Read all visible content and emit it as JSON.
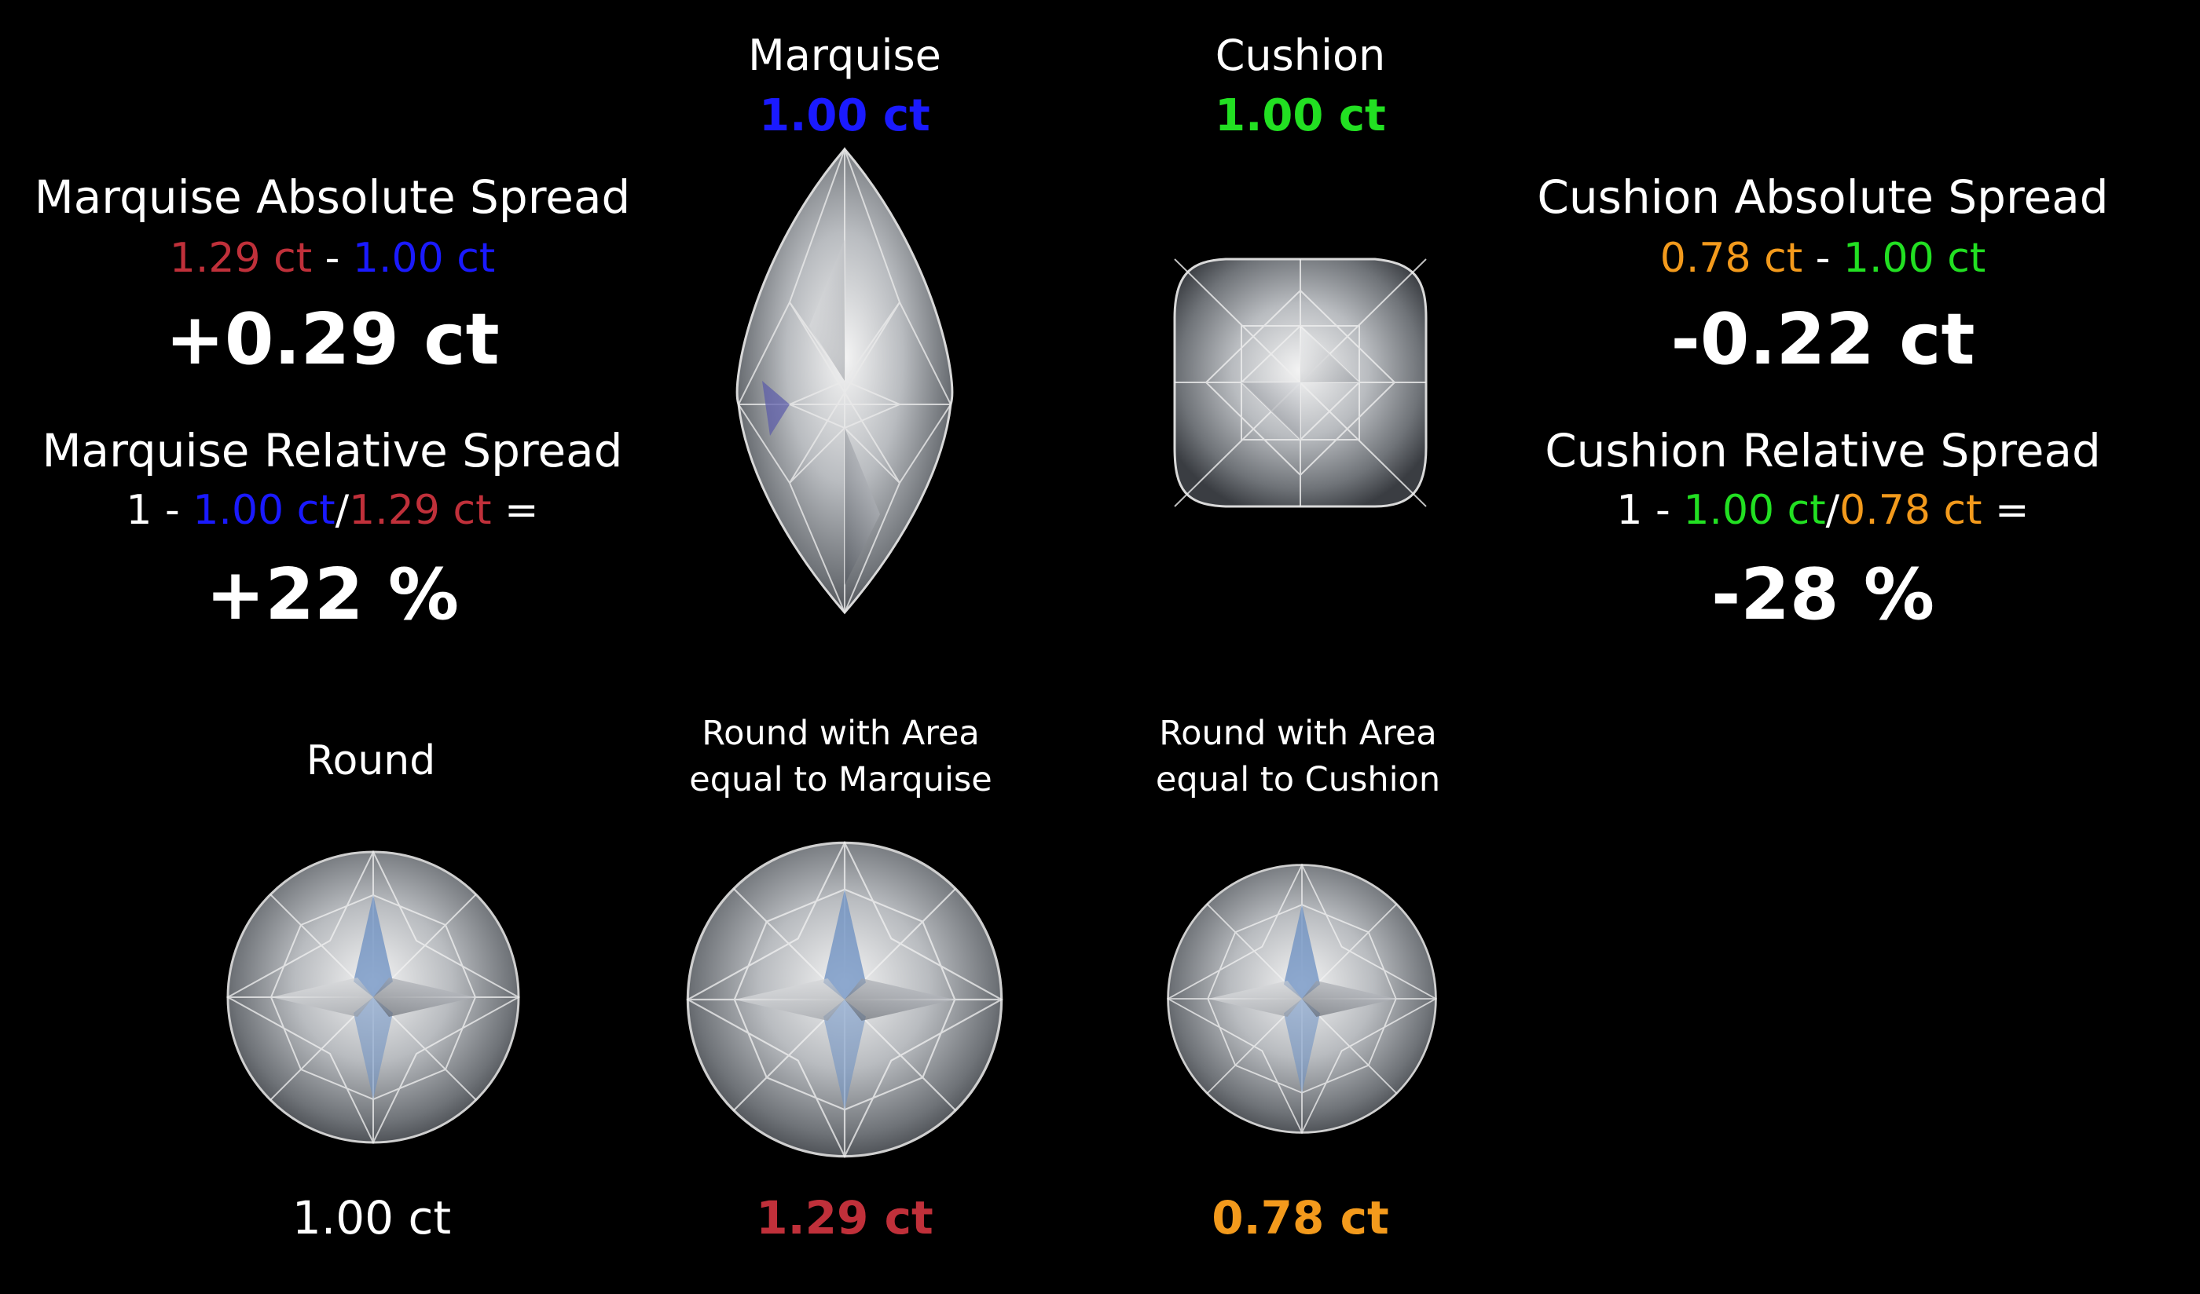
{
  "colors": {
    "red": "#c0303a",
    "blue": "#1a1aff",
    "green": "#22e022",
    "orange": "#f39a1c",
    "white": "#ffffff",
    "background": "#000000"
  },
  "marquise_header": {
    "name": "Marquise",
    "carat": "1.00 ct"
  },
  "cushion_header": {
    "name": "Cushion",
    "carat": "1.00 ct"
  },
  "marquise_spread": {
    "absolute_title": "Marquise Absolute Spread",
    "absolute_a": "1.29 ct",
    "absolute_op": "-",
    "absolute_b": "1.00 ct",
    "absolute_result": "+0.29 ct",
    "relative_title": "Marquise Relative Spread",
    "relative_one": "1 -",
    "relative_num": "1.00 ct",
    "relative_slash": "/",
    "relative_den": "1.29 ct",
    "relative_eq": "=",
    "relative_result": "+22 %"
  },
  "cushion_spread": {
    "absolute_title": "Cushion Absolute Spread",
    "absolute_a": "0.78 ct",
    "absolute_op": "-",
    "absolute_b": "1.00 ct",
    "absolute_result": "-0.22 ct",
    "relative_title": "Cushion Relative Spread",
    "relative_one": "1 -",
    "relative_num": "1.00 ct",
    "relative_slash": "/",
    "relative_den": "0.78 ct",
    "relative_eq": "=",
    "relative_result": "-28 %"
  },
  "rounds": [
    {
      "caption_line1": "Round",
      "caption_line2": "",
      "carat": "1.00 ct",
      "carat_color": "#ffffff"
    },
    {
      "caption_line1": "Round with Area",
      "caption_line2": "equal to Marquise",
      "carat": "1.29 ct",
      "carat_color": "#c0303a"
    },
    {
      "caption_line1": "Round with Area",
      "caption_line2": "equal to Cushion",
      "carat": "0.78 ct",
      "carat_color": "#f39a1c"
    }
  ],
  "gem_images": {
    "marquise": "marquise-diamond",
    "cushion": "cushion-diamond",
    "round": "round-brilliant-diamond"
  }
}
